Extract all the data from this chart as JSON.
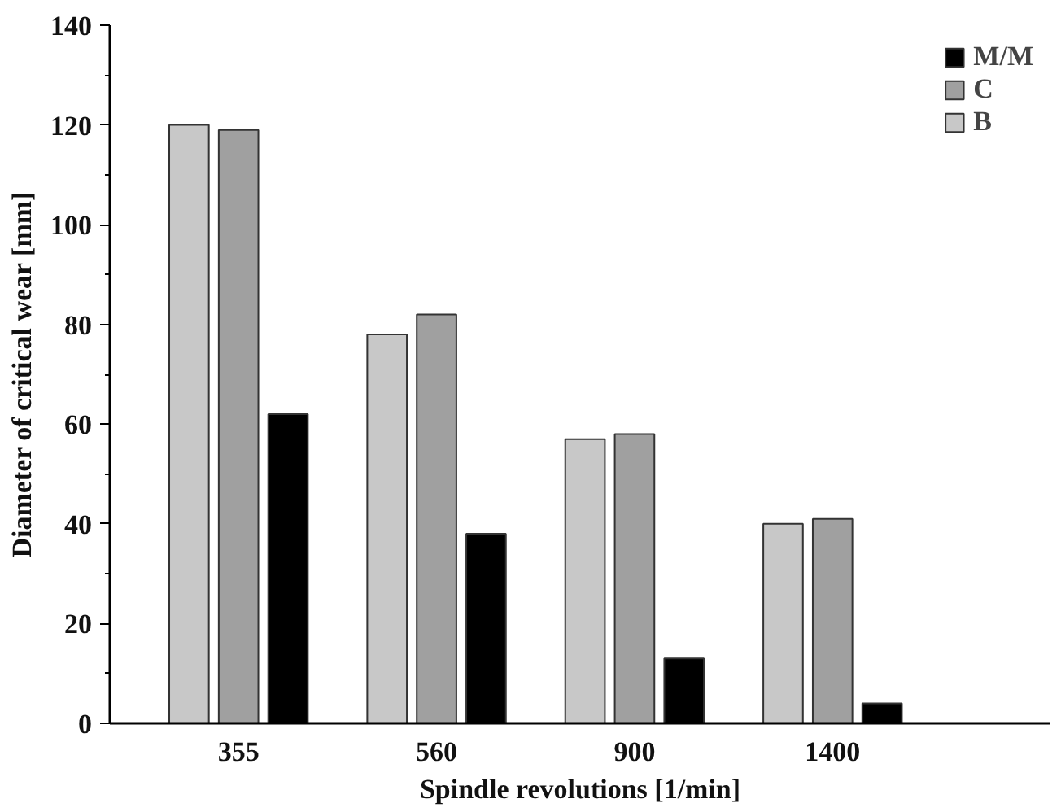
{
  "chart_data": {
    "type": "bar",
    "xlabel": "Spindle revolutions [1/min]",
    "ylabel": "Diameter of critical wear [mm]",
    "categories": [
      "355",
      "560",
      "900",
      "1400"
    ],
    "series": [
      {
        "name": "B",
        "color": "#c8c8c8",
        "values": [
          120,
          78,
          57,
          40
        ]
      },
      {
        "name": "C",
        "color": "#a0a0a0",
        "values": [
          119,
          82,
          58,
          41
        ]
      },
      {
        "name": "M/M",
        "color": "#000000",
        "values": [
          62,
          38,
          13,
          4
        ]
      }
    ],
    "ylim": [
      0,
      140
    ],
    "yticks": [
      0,
      {
        "value": 10,
        "label": null
      },
      20,
      {
        "value": 30,
        "label": null
      },
      40,
      {
        "value": 50,
        "label": null
      },
      60,
      {
        "value": 70,
        "label": null
      },
      80,
      {
        "value": 90,
        "label": null
      },
      100,
      {
        "value": 110,
        "label": null
      },
      120,
      {
        "value": 130,
        "label": null
      },
      140
    ],
    "grid": false,
    "legend": "top right"
  }
}
